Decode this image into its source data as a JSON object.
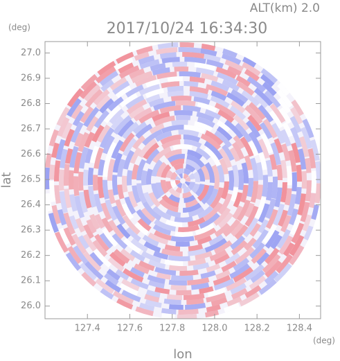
{
  "chart_data": {
    "type": "ppi",
    "title": "2017/10/24 16:34:30",
    "subtitle": "ALT(km) 2.0",
    "x_label": "lon",
    "y_label": "lat",
    "x_unit": "(deg)",
    "y_unit": "(deg)",
    "xlim": [
      127.2,
      128.5
    ],
    "ylim": [
      25.95,
      27.045
    ],
    "xticks": [
      127.4,
      127.6,
      127.8,
      {
        "value": 128.0,
        "label": "128.0"
      },
      128.2,
      128.4
    ],
    "yticks": [
      {
        "value": 26.0,
        "label": "26.0"
      },
      26.1,
      26.2,
      26.3,
      26.4,
      26.5,
      26.6,
      26.7,
      26.8,
      26.9,
      {
        "value": 27.0,
        "label": "27.0"
      }
    ]
  }
}
